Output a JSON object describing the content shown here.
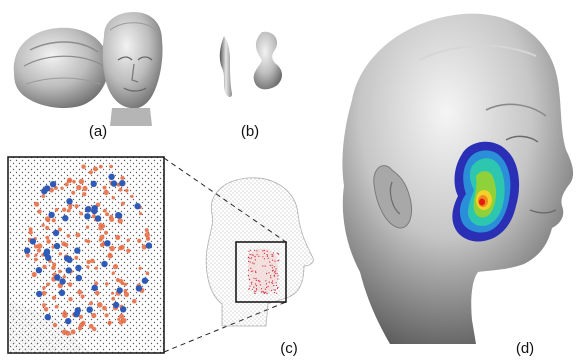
{
  "figure": {
    "panels": [
      {
        "id": "a",
        "label": "(a)"
      },
      {
        "id": "b",
        "label": "(b)"
      },
      {
        "id": "c",
        "label": "(c)"
      },
      {
        "id": "d",
        "label": "(d)"
      }
    ],
    "colors": {
      "background": "#ffffff",
      "sculpture_gray": "#bdbdbd",
      "orange_dots": "#e8683f",
      "blue_dots": "#2f5bb8",
      "heatmap_outer": "#2b2fb5",
      "heatmap_mid": "#2dc7b0",
      "heatmap_inner": "#8fd13a",
      "heatmap_peak": "#e01e14"
    }
  }
}
